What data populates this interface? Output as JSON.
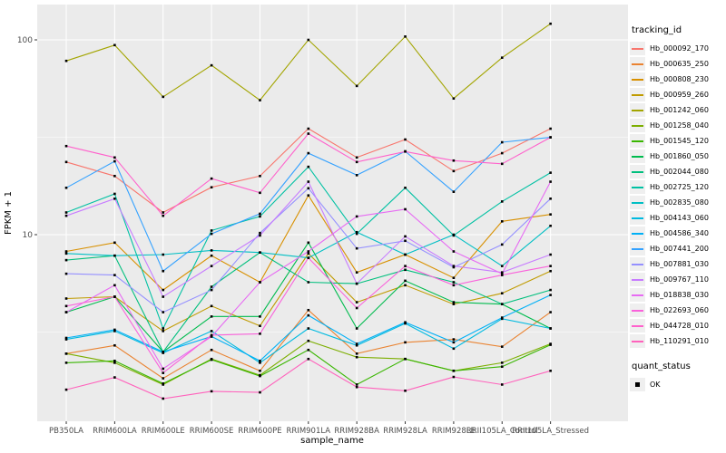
{
  "figure": {
    "bg": "#FFFFFF",
    "panel_bg": "#EBEBEB",
    "grid_color": "#FFFFFF",
    "tick_color": "#333333",
    "tick_label_color": "#4D4D4D",
    "point_color": "#000000"
  },
  "axes": {
    "x_title": "sample_name",
    "y_title": "FPKM + 1",
    "y_ticks": [
      {
        "label": "10",
        "value": 10
      },
      {
        "label": "100",
        "value": 100
      }
    ],
    "y_minor": [
      3.1623,
      31.623
    ]
  },
  "legend": {
    "tracking_title": "tracking_id",
    "quant_title": "quant_status",
    "quant_items": [
      {
        "label": "OK",
        "marker": "black-square"
      }
    ]
  },
  "chart_data": {
    "type": "line",
    "title": "",
    "xlabel": "sample_name",
    "ylabel": "FPKM + 1",
    "x_scale": "categorical",
    "y_scale": "log10",
    "ylim": [
      1.35,
      140
    ],
    "grid": true,
    "legend_position": "right",
    "point_marker": "small-black-square",
    "categories": [
      "PB350LA",
      "RRIM600LA",
      "RRIM600LE",
      "RRIM600SE",
      "RRIM600PE",
      "RRIM901LA",
      "RRIM928BA",
      "RRIM928LA",
      "RRIM928LE",
      "RRII105LA_Control",
      "RRII105LA_Stressed"
    ],
    "series": [
      {
        "name": "Hb_000092_170",
        "color": "#F8766D",
        "values": [
          23.6,
          20.0,
          13.0,
          17.5,
          20.0,
          35.0,
          24.9,
          30.8,
          21.2,
          26.2,
          35.0
        ]
      },
      {
        "name": "Hb_000635_250",
        "color": "#EA8331",
        "values": [
          2.45,
          2.7,
          1.83,
          2.56,
          2.0,
          4.1,
          2.45,
          2.8,
          2.9,
          2.66,
          4.0
        ]
      },
      {
        "name": "Hb_000808_230",
        "color": "#D89000",
        "values": [
          8.2,
          9.1,
          5.2,
          7.8,
          5.7,
          15.9,
          6.4,
          7.9,
          6.0,
          11.7,
          12.7
        ]
      },
      {
        "name": "Hb_000959_260",
        "color": "#C09B00",
        "values": [
          4.7,
          4.8,
          3.2,
          4.3,
          3.4,
          8.0,
          4.5,
          5.5,
          4.4,
          5.0,
          6.5
        ]
      },
      {
        "name": "Hb_001242_060",
        "color": "#A3A500",
        "values": [
          78,
          94,
          51,
          74,
          49,
          100,
          58,
          104,
          50,
          81,
          121
        ]
      },
      {
        "name": "Hb_001258_040",
        "color": "#7CAE00",
        "values": [
          2.45,
          2.2,
          1.7,
          2.3,
          1.9,
          2.85,
          2.35,
          2.3,
          2.0,
          2.2,
          2.75
        ]
      },
      {
        "name": "Hb_001545_120",
        "color": "#39B600",
        "values": [
          2.2,
          2.25,
          1.72,
          2.28,
          1.88,
          2.56,
          1.7,
          2.3,
          2.0,
          2.1,
          2.72
        ]
      },
      {
        "name": "Hb_001860_050",
        "color": "#00BB4E",
        "values": [
          4.0,
          4.8,
          2.5,
          3.8,
          3.8,
          9.1,
          3.3,
          5.8,
          4.5,
          4.4,
          3.3
        ]
      },
      {
        "name": "Hb_002044_080",
        "color": "#00BF7D",
        "values": [
          7.4,
          7.8,
          2.5,
          5.4,
          8.1,
          5.7,
          5.6,
          6.6,
          5.7,
          4.4,
          5.2
        ]
      },
      {
        "name": "Hb_002725_120",
        "color": "#00C1A3",
        "values": [
          13.0,
          16.2,
          3.3,
          10.5,
          12.4,
          22.3,
          10.1,
          17.4,
          9.9,
          14.8,
          20.8
        ]
      },
      {
        "name": "Hb_002835_080",
        "color": "#00BFC4",
        "values": [
          8.0,
          7.8,
          7.9,
          8.3,
          8.1,
          7.6,
          10.3,
          7.9,
          10.0,
          6.9,
          11.1
        ]
      },
      {
        "name": "Hb_004143_060",
        "color": "#00BAE0",
        "values": [
          2.9,
          3.2,
          2.47,
          3.2,
          2.2,
          3.3,
          2.7,
          3.5,
          2.6,
          3.7,
          3.3
        ]
      },
      {
        "name": "Hb_004586_340",
        "color": "#00B0F6",
        "values": [
          2.95,
          3.25,
          2.5,
          3.0,
          2.25,
          3.85,
          2.75,
          3.55,
          2.8,
          3.75,
          4.9
        ]
      },
      {
        "name": "Hb_007441_200",
        "color": "#35A2FF",
        "values": [
          17.4,
          23.8,
          6.5,
          10.1,
          12.8,
          26.2,
          20.2,
          26.8,
          16.6,
          29.8,
          31.6
        ]
      },
      {
        "name": "Hb_007881_030",
        "color": "#9590FF",
        "values": [
          6.3,
          6.2,
          4.0,
          5.2,
          10.2,
          17.3,
          8.5,
          9.3,
          6.8,
          8.9,
          15.3
        ]
      },
      {
        "name": "Hb_009767_110",
        "color": "#C77CFF",
        "values": [
          12.5,
          15.3,
          4.8,
          6.9,
          9.9,
          18.7,
          5.6,
          9.8,
          6.9,
          6.4,
          7.9
        ]
      },
      {
        "name": "Hb_018838_030",
        "color": "#E76BF3",
        "values": [
          4.0,
          5.5,
          2.05,
          3.0,
          5.7,
          8.2,
          12.4,
          13.5,
          8.2,
          6.3,
          18.7
        ]
      },
      {
        "name": "Hb_022693_060",
        "color": "#FA62DB",
        "values": [
          4.3,
          4.8,
          1.95,
          3.05,
          3.1,
          7.6,
          4.2,
          6.9,
          5.5,
          6.2,
          6.9
        ]
      },
      {
        "name": "Hb_044728_010",
        "color": "#FF61CC",
        "values": [
          28.5,
          24.9,
          12.5,
          19.4,
          16.4,
          33.0,
          23.6,
          26.7,
          24.0,
          23.1,
          31.6
        ]
      },
      {
        "name": "Hb_110291_010",
        "color": "#FF62BC",
        "values": [
          1.6,
          1.85,
          1.44,
          1.57,
          1.55,
          2.3,
          1.65,
          1.58,
          1.86,
          1.7,
          2.0
        ]
      }
    ],
    "quant_status": {
      "title": "quant_status",
      "items": [
        "OK"
      ]
    }
  }
}
